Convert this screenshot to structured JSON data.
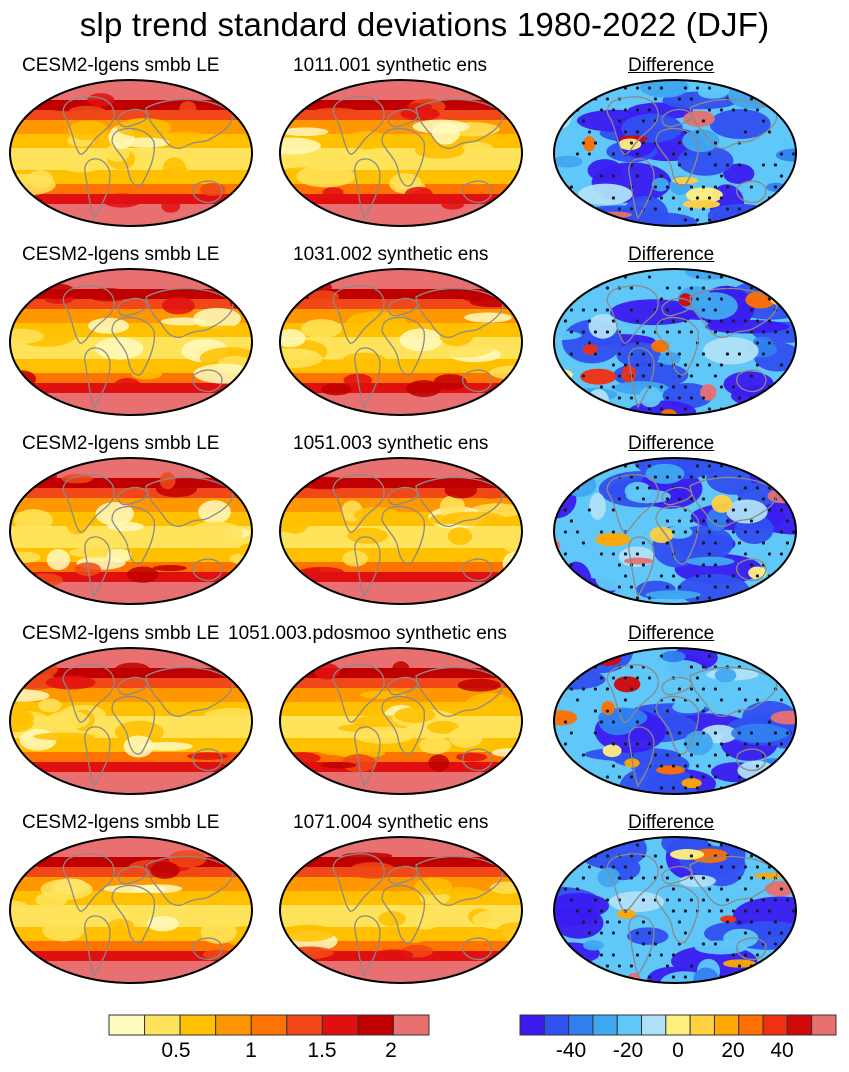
{
  "title": "slp trend standard deviations 1980-2022 (DJF)",
  "rows": [
    {
      "left_label": "CESM2-lgens smbb LE",
      "middle_label": "1011.001 synthetic ens",
      "right_label": "Difference"
    },
    {
      "left_label": "CESM2-lgens smbb LE",
      "middle_label": "1031.002 synthetic ens",
      "right_label": "Difference"
    },
    {
      "left_label": "CESM2-lgens smbb LE",
      "middle_label": "1051.003 synthetic ens",
      "right_label": "Difference"
    },
    {
      "left_label": "CESM2-lgens smbb LE",
      "middle_label": "1051.003.pdosmoo synthetic ens",
      "right_label": "Difference"
    },
    {
      "left_label": "CESM2-lgens smbb LE",
      "middle_label": "1071.004 synthetic ens",
      "right_label": "Difference"
    }
  ],
  "colorbar_left": {
    "colors": [
      "#fffac0",
      "#ffe35a",
      "#ffc000",
      "#ff9800",
      "#ff7300",
      "#f04818",
      "#e01010",
      "#c00000",
      "#e87070"
    ],
    "labels": [
      "0.5",
      "1",
      "1.5",
      "2"
    ]
  },
  "colorbar_right": {
    "colors": [
      "#3a1cf0",
      "#3050f0",
      "#3080f0",
      "#40a8f0",
      "#60c8f8",
      "#b0e0f8",
      "#fff080",
      "#ffd040",
      "#ffa800",
      "#ff7000",
      "#f03010",
      "#d00808",
      "#e87070"
    ],
    "labels": [
      "-40",
      "-20",
      "0",
      "20",
      "40"
    ]
  }
}
